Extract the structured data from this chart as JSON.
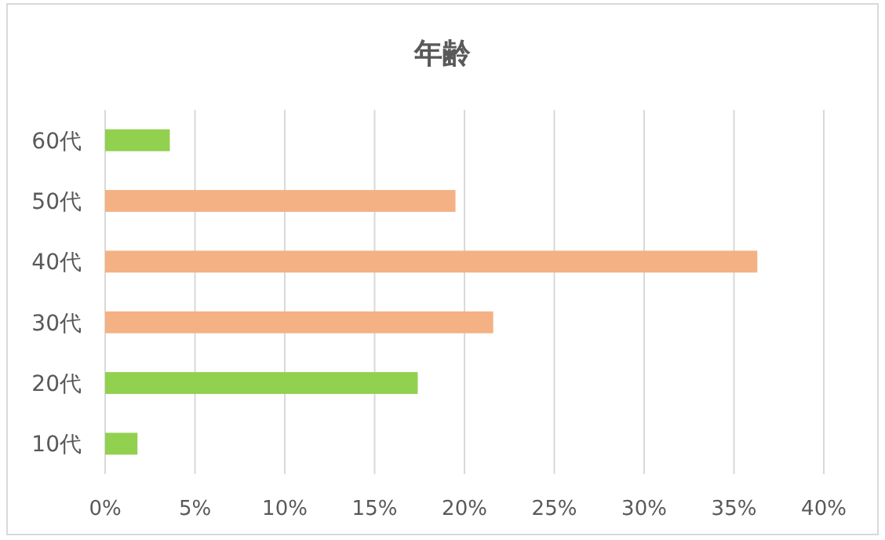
{
  "chart_data": {
    "type": "bar",
    "orientation": "horizontal",
    "title": "年齢",
    "categories": [
      "60代",
      "50代",
      "40代",
      "30代",
      "20代",
      "10代"
    ],
    "values": [
      3.6,
      19.5,
      36.3,
      21.6,
      17.4,
      1.8
    ],
    "colors": [
      "#92d050",
      "#f4b183",
      "#f4b183",
      "#f4b183",
      "#92d050",
      "#92d050"
    ],
    "xlim": [
      0,
      40
    ],
    "xticks": [
      {
        "value": 0,
        "label": "0%"
      },
      {
        "value": 5,
        "label": "5%"
      },
      {
        "value": 10,
        "label": "10%"
      },
      {
        "value": 15,
        "label": "15%"
      },
      {
        "value": 20,
        "label": "20%"
      },
      {
        "value": 25,
        "label": "25%"
      },
      {
        "value": 30,
        "label": "30%"
      },
      {
        "value": 35,
        "label": "35%"
      },
      {
        "value": 40,
        "label": "40%"
      }
    ],
    "grid": "x"
  }
}
